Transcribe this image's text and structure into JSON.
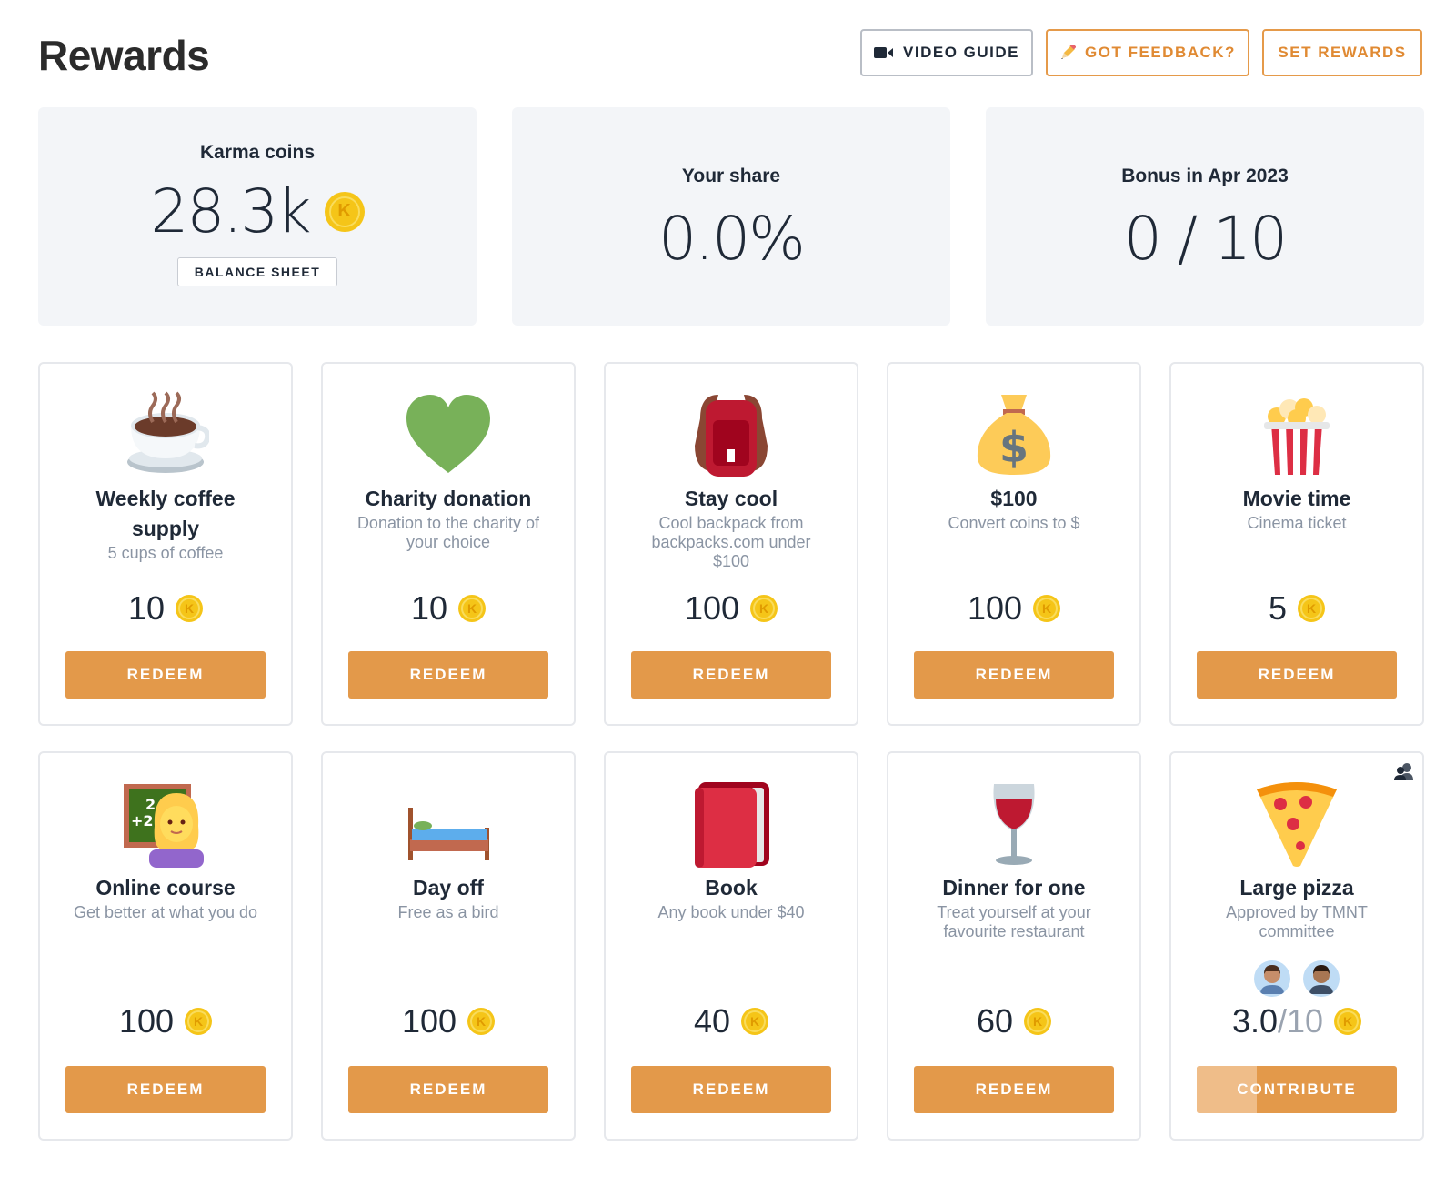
{
  "header": {
    "title": "Rewards",
    "video_guide": "VIDEO GUIDE",
    "feedback": "GOT FEEDBACK?",
    "set_rewards": "SET REWARDS"
  },
  "stats": {
    "karma": {
      "label": "Karma coins",
      "value": "28.3k",
      "button": "BALANCE SHEET"
    },
    "share": {
      "label": "Your share",
      "value": "0.0%"
    },
    "bonus": {
      "label": "Bonus in Apr 2023",
      "value": "0 / 10"
    }
  },
  "coin_symbol": "K",
  "colors": {
    "accent": "#e3994a",
    "coin": "#f5c518",
    "card_bg": "#f3f5f8"
  },
  "rewards": [
    {
      "icon": "coffee-icon",
      "title": "Weekly coffee supply",
      "desc": "5 cups of coffee",
      "price": "10",
      "action": "REDEEM"
    },
    {
      "icon": "green-heart-icon",
      "title": "Charity donation",
      "desc": "Donation to the charity of your choice",
      "price": "10",
      "action": "REDEEM"
    },
    {
      "icon": "backpack-icon",
      "title": "Stay cool",
      "desc": "Cool backpack from backpacks.com under $100",
      "price": "100",
      "action": "REDEEM"
    },
    {
      "icon": "money-bag-icon",
      "title": "$100",
      "desc": "Convert coins to $",
      "price": "100",
      "action": "REDEEM"
    },
    {
      "icon": "popcorn-icon",
      "title": "Movie time",
      "desc": "Cinema ticket",
      "price": "5",
      "action": "REDEEM"
    },
    {
      "icon": "teacher-icon",
      "title": "Online course",
      "desc": "Get better at what you do",
      "price": "100",
      "action": "REDEEM"
    },
    {
      "icon": "bed-icon",
      "title": "Day off",
      "desc": "Free as a bird",
      "price": "100",
      "action": "REDEEM"
    },
    {
      "icon": "book-icon",
      "title": "Book",
      "desc": "Any book under $40",
      "price": "40",
      "action": "REDEEM"
    },
    {
      "icon": "wine-glass-icon",
      "title": "Dinner for one",
      "desc": "Treat yourself at your favourite restaurant",
      "price": "60",
      "action": "REDEEM"
    },
    {
      "icon": "pizza-icon",
      "title": "Large pizza",
      "desc": "Approved by TMNT committee",
      "price_current": "3.0",
      "price_sep": "/",
      "price_total": "10",
      "progress": 0.3,
      "action": "CONTRIBUTE",
      "contributors": 2
    }
  ]
}
